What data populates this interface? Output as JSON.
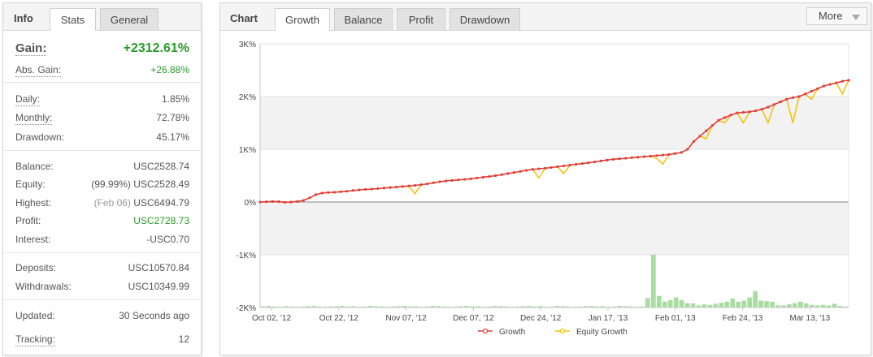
{
  "info": {
    "title": "Info",
    "tabs": [
      "Stats",
      "General"
    ],
    "gain": {
      "label": "Gain:",
      "value": "+2312.61%"
    },
    "abs_gain": {
      "label": "Abs. Gain:",
      "value": "+26.88%"
    },
    "daily": {
      "label": "Daily:",
      "value": "1.85%"
    },
    "monthly": {
      "label": "Monthly:",
      "value": "72.78%"
    },
    "drawdown": {
      "label": "Drawdown:",
      "value": "45.17%"
    },
    "balance": {
      "label": "Balance:",
      "value": "USC2528.74"
    },
    "equity": {
      "label": "Equity:",
      "note": "(99.99%)",
      "value": "USC2528.49"
    },
    "highest": {
      "label": "Highest:",
      "note": "(Feb 06)",
      "value": "USC6494.79"
    },
    "profit": {
      "label": "Profit:",
      "value": "USC2728.73"
    },
    "interest": {
      "label": "Interest:",
      "value": "-USC0.70"
    },
    "deposits": {
      "label": "Deposits:",
      "value": "USC10570.84"
    },
    "withdrawals": {
      "label": "Withdrawals:",
      "value": "USC10349.99"
    },
    "updated": {
      "label": "Updated:",
      "value": "30 Seconds ago"
    },
    "tracking": {
      "label": "Tracking:",
      "value": "12"
    }
  },
  "chart_panel": {
    "title": "Chart",
    "tabs": [
      "Growth",
      "Balance",
      "Profit",
      "Drawdown"
    ],
    "more_label": "More"
  },
  "colors": {
    "growth": "#e03c3c",
    "equity": "#f5c000",
    "bars": "#a8dca0",
    "gain_green": "#2a9b2a"
  },
  "chart_data": {
    "type": "line",
    "y_tick_labels": [
      "3K%",
      "2K%",
      "1K%",
      "0%",
      "-1K%",
      "-2K%"
    ],
    "y_ticks": [
      3000,
      2000,
      1000,
      0,
      -1000,
      -2000
    ],
    "ylim": [
      -2000,
      3000
    ],
    "grid": true,
    "legend_position": "bottom",
    "x_tick_labels": [
      "Oct 02, '12",
      "Oct 22, '12",
      "Nov 07, '12",
      "Dec 07, '12",
      "Dec 24, '12",
      "Jan 17, '13",
      "Feb 01, '13",
      "Feb 24, '13",
      "Mar 13, '13"
    ],
    "series": [
      {
        "name": "Growth",
        "color": "#e03c3c",
        "values": [
          0,
          5,
          10,
          8,
          -5,
          0,
          10,
          30,
          80,
          140,
          170,
          180,
          185,
          195,
          205,
          220,
          230,
          240,
          245,
          255,
          265,
          275,
          285,
          295,
          305,
          315,
          330,
          345,
          365,
          385,
          400,
          410,
          420,
          430,
          440,
          455,
          470,
          485,
          500,
          520,
          540,
          560,
          580,
          600,
          620,
          630,
          640,
          655,
          670,
          685,
          700,
          715,
          730,
          745,
          760,
          780,
          795,
          810,
          820,
          830,
          840,
          850,
          860,
          870,
          880,
          890,
          900,
          920,
          940,
          1000,
          1150,
          1250,
          1350,
          1450,
          1550,
          1600,
          1650,
          1690,
          1700,
          1710,
          1730,
          1760,
          1800,
          1850,
          1900,
          1950,
          1980,
          2000,
          2050,
          2100,
          2150,
          2200,
          2230,
          2260,
          2290,
          2310
        ]
      },
      {
        "name": "Equity Growth",
        "color": "#f5c000",
        "values": [
          0,
          5,
          10,
          8,
          -5,
          0,
          10,
          30,
          80,
          140,
          170,
          180,
          185,
          195,
          205,
          220,
          230,
          240,
          245,
          255,
          265,
          275,
          285,
          295,
          305,
          160,
          330,
          345,
          365,
          385,
          400,
          410,
          420,
          430,
          440,
          455,
          470,
          485,
          500,
          520,
          540,
          560,
          580,
          600,
          620,
          460,
          640,
          655,
          670,
          540,
          700,
          715,
          730,
          745,
          760,
          780,
          795,
          810,
          820,
          830,
          840,
          850,
          860,
          870,
          830,
          720,
          900,
          920,
          940,
          1000,
          1150,
          1250,
          1200,
          1450,
          1550,
          1500,
          1650,
          1690,
          1500,
          1710,
          1730,
          1760,
          1500,
          1850,
          1900,
          1950,
          1500,
          2000,
          2050,
          1950,
          2150,
          2200,
          2230,
          2260,
          2050,
          2310
        ]
      },
      {
        "name": "Daily bars",
        "values": [
          20,
          30,
          20,
          15,
          25,
          20,
          15,
          20,
          25,
          30,
          20,
          15,
          20,
          25,
          30,
          20,
          25,
          15,
          20,
          30,
          25,
          20,
          15,
          20,
          25,
          30,
          20,
          25,
          15,
          20,
          30,
          25,
          20,
          15,
          20,
          25,
          30,
          20,
          25,
          15,
          20,
          30,
          25,
          20,
          15,
          20,
          25,
          30,
          20,
          25,
          15,
          20,
          30,
          25,
          20,
          15,
          20,
          25,
          30,
          20,
          25,
          15,
          20,
          30,
          25,
          20,
          15,
          20,
          180,
          1000,
          220,
          110,
          140,
          190,
          140,
          80,
          80,
          40,
          60,
          50,
          70,
          90,
          110,
          170,
          110,
          130,
          190,
          310,
          130,
          120,
          110,
          40,
          40,
          60,
          80,
          110,
          80,
          50,
          40,
          50,
          40,
          70,
          30,
          20
        ]
      }
    ]
  }
}
